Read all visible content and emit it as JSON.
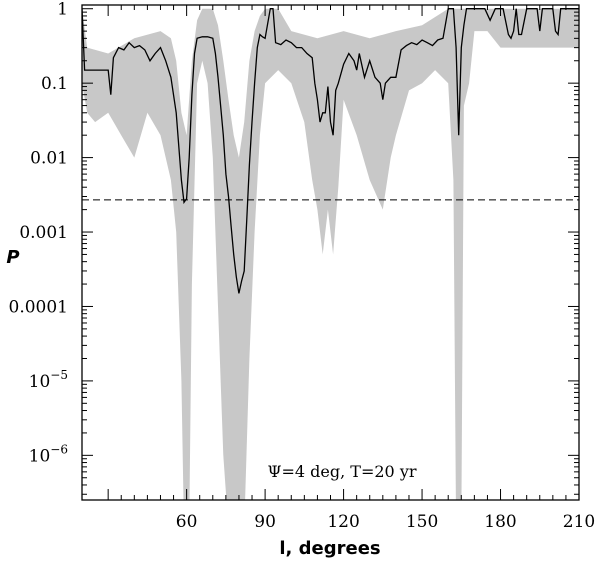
{
  "chart_data": {
    "type": "line",
    "title": "",
    "xlabel": "l, degrees",
    "ylabel": "P",
    "xlim": [
      20,
      210
    ],
    "ylim_log10": [
      -6.6,
      0.05
    ],
    "yscale": "log",
    "grid": false,
    "annotation": "Ψ=4 deg, T=20 yr",
    "x_ticks": [
      60,
      90,
      120,
      150,
      180,
      210
    ],
    "x_tick_labels": [
      "60",
      "90",
      "120",
      "150",
      "180",
      "210"
    ],
    "y_ticks_log10": [
      0,
      -1,
      -2,
      -3,
      -4,
      -5,
      -6
    ],
    "y_tick_labels": [
      {
        "mant": "1",
        "exp": ""
      },
      {
        "mant": "0.1",
        "exp": ""
      },
      {
        "mant": "0.01",
        "exp": ""
      },
      {
        "mant": "0.001",
        "exp": ""
      },
      {
        "mant": "0.0001",
        "exp": ""
      },
      {
        "mant": "10",
        "exp": "−5"
      },
      {
        "mant": "10",
        "exp": "−6"
      }
    ],
    "threshold": {
      "y": 0.0027,
      "style": "dashed"
    },
    "colors": {
      "line": "#000000",
      "band": "#c8c8c8",
      "threshold": "#000000"
    },
    "series": [
      {
        "style": "line",
        "x": [
          20,
          21,
          25,
          30,
          31,
          32,
          34,
          36,
          38,
          40,
          42,
          44,
          46,
          48,
          50,
          52,
          54,
          56,
          58,
          59,
          60,
          61,
          62,
          63,
          64,
          66,
          68,
          70,
          71,
          72,
          73,
          74,
          75,
          76,
          77,
          78,
          79,
          80,
          81,
          82,
          83,
          84,
          85,
          86,
          87,
          88,
          89,
          90,
          92,
          93,
          94,
          96,
          98,
          100,
          102,
          104,
          106,
          108,
          109,
          110,
          111,
          112,
          113,
          114,
          115,
          116,
          117,
          118,
          120,
          122,
          124,
          125,
          126,
          128,
          130,
          132,
          134,
          135,
          136,
          138,
          140,
          142,
          144,
          146,
          148,
          150,
          152,
          154,
          156,
          158,
          160,
          161,
          162,
          163,
          164,
          165,
          166,
          167,
          168,
          170,
          172,
          174,
          176,
          178,
          180,
          181,
          183,
          184,
          185,
          186,
          187,
          188,
          190,
          192,
          194,
          195,
          196,
          198,
          200,
          201,
          202,
          203,
          204,
          206,
          208,
          210
        ],
        "y": [
          1,
          0.15,
          0.15,
          0.15,
          0.07,
          0.22,
          0.3,
          0.28,
          0.35,
          0.3,
          0.32,
          0.28,
          0.2,
          0.25,
          0.3,
          0.2,
          0.12,
          0.04,
          0.005,
          0.0025,
          0.0028,
          0.01,
          0.07,
          0.25,
          0.4,
          0.42,
          0.42,
          0.4,
          0.25,
          0.12,
          0.05,
          0.02,
          0.006,
          0.003,
          0.0012,
          0.0005,
          0.00025,
          0.00015,
          0.00022,
          0.0003,
          0.0015,
          0.008,
          0.03,
          0.1,
          0.3,
          0.45,
          0.42,
          0.4,
          1,
          1,
          0.35,
          0.33,
          0.38,
          0.35,
          0.3,
          0.3,
          0.25,
          0.22,
          0.1,
          0.06,
          0.03,
          0.04,
          0.04,
          0.09,
          0.03,
          0.02,
          0.08,
          0.1,
          0.18,
          0.25,
          0.2,
          0.15,
          0.25,
          0.12,
          0.2,
          0.12,
          0.1,
          0.06,
          0.1,
          0.12,
          0.12,
          0.28,
          0.32,
          0.35,
          0.33,
          0.38,
          0.35,
          0.32,
          0.38,
          0.4,
          1,
          1,
          1,
          0.3,
          0.02,
          0.3,
          0.6,
          1,
          1,
          1,
          1,
          1,
          0.7,
          1,
          1,
          1,
          0.45,
          0.4,
          0.5,
          1,
          0.45,
          0.45,
          1,
          1,
          1,
          0.5,
          1,
          1,
          1,
          0.5,
          0.45,
          1,
          1,
          1,
          1,
          1
        ]
      },
      {
        "style": "band-upper",
        "x": [
          20,
          22,
          30,
          40,
          50,
          54,
          56,
          58,
          60,
          62,
          64,
          66,
          68,
          70,
          72,
          74,
          76,
          78,
          80,
          82,
          84,
          86,
          88,
          90,
          95,
          100,
          110,
          120,
          130,
          140,
          150,
          160,
          162,
          164,
          166,
          170,
          180,
          190,
          200,
          210
        ],
        "y": [
          1,
          0.3,
          0.25,
          0.4,
          0.5,
          0.4,
          0.2,
          0.04,
          0.02,
          0.2,
          0.7,
          1,
          1,
          1,
          0.6,
          0.2,
          0.06,
          0.02,
          0.01,
          0.03,
          0.2,
          0.5,
          0.8,
          1,
          1,
          0.5,
          0.4,
          0.5,
          0.4,
          0.5,
          0.6,
          1,
          1,
          1,
          1,
          1,
          1,
          1,
          1,
          1
        ]
      },
      {
        "style": "band-lower",
        "x": [
          20,
          22,
          25,
          30,
          35,
          40,
          45,
          50,
          54,
          56,
          58,
          59,
          60,
          61,
          62,
          64,
          66,
          68,
          70,
          72,
          74,
          76,
          78,
          79,
          80,
          81,
          82,
          84,
          86,
          88,
          90,
          95,
          100,
          105,
          108,
          110,
          112,
          114,
          116,
          118,
          120,
          125,
          130,
          135,
          138,
          140,
          145,
          150,
          155,
          160,
          162,
          163,
          164,
          165,
          166,
          168,
          170,
          175,
          180,
          185,
          190,
          195,
          200,
          205,
          210
        ],
        "y": [
          0.1,
          0.04,
          0.03,
          0.04,
          0.02,
          0.01,
          0.04,
          0.02,
          0.005,
          0.001,
          1e-05,
          1e-07,
          1e-07,
          1e-07,
          0.0002,
          0.1,
          0.2,
          0.1,
          0.01,
          0.0001,
          1e-06,
          1e-07,
          1e-07,
          1e-07,
          1e-07,
          1e-07,
          1e-07,
          2e-05,
          0.001,
          0.02,
          0.1,
          0.15,
          0.1,
          0.03,
          0.005,
          0.002,
          0.0005,
          0.002,
          0.0005,
          0.004,
          0.06,
          0.02,
          0.005,
          0.002,
          0.01,
          0.02,
          0.08,
          0.1,
          0.15,
          0.1,
          0.005,
          1e-07,
          1e-07,
          1e-07,
          0.05,
          0.1,
          0.5,
          0.5,
          0.3,
          0.3,
          0.3,
          0.3,
          0.3,
          0.3,
          0.3
        ]
      }
    ]
  }
}
